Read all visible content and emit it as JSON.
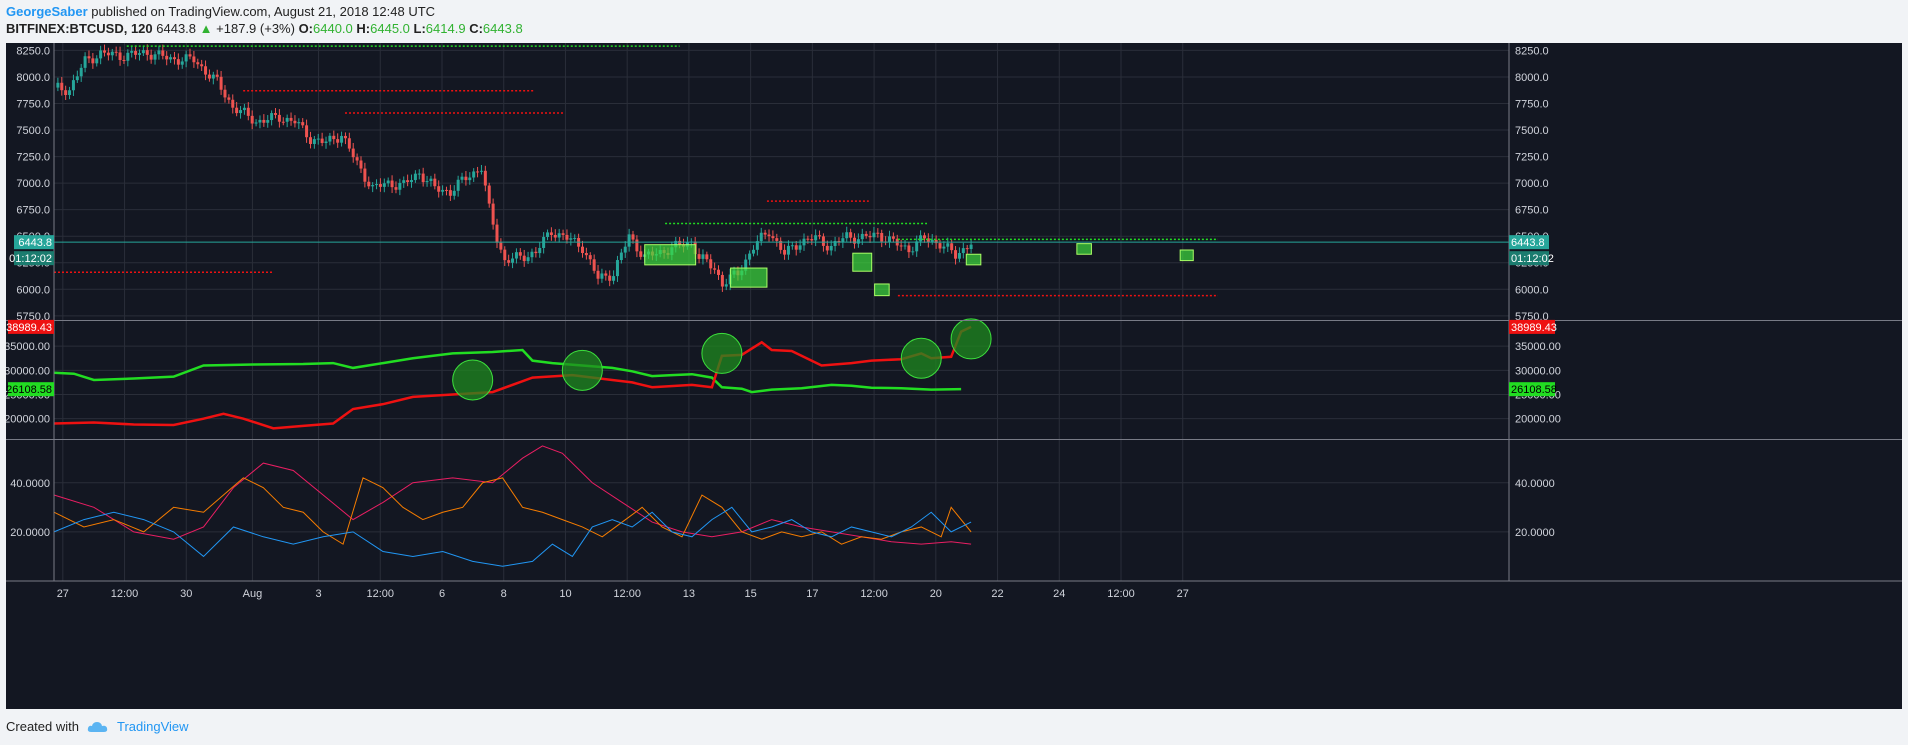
{
  "header": {
    "author": "GeorgeSaber",
    "published_text": "published on TradingView.com, August 21, 2018 12:48 UTC",
    "symbol": "BITFINEX:BTCUSD, 120",
    "last": "6443.8",
    "change": "+187.9 (+3%)",
    "o_label": "O:",
    "o": "6440.0",
    "h_label": "H:",
    "h": "6445.0",
    "l_label": "L:",
    "l": "6414.9",
    "c_label": "C:",
    "c": "6443.8"
  },
  "footer": {
    "created_with": "Created with",
    "brand": "TradingView"
  },
  "colors": {
    "bg": "#131722",
    "grid": "#2a2e39",
    "up": "#26a69a",
    "down": "#ef5350",
    "green": "#22dd22",
    "red": "#ee1111",
    "orange": "#f57c00",
    "pink": "#e91e63",
    "blue": "#2196f3"
  },
  "chart_data": [
    {
      "type": "candlestick",
      "pane": "price",
      "y_ticks": [
        "8250.0",
        "8000.0",
        "7750.0",
        "7500.0",
        "7250.0",
        "7000.0",
        "6750.0",
        "6500.0",
        "6250.0",
        "6000.0",
        "5750.0"
      ],
      "ylim": [
        5720,
        8320
      ],
      "x_ticks": [
        "27",
        "12:00",
        "30",
        "Aug",
        "3",
        "12:00",
        "6",
        "8",
        "10",
        "12:00",
        "13",
        "15",
        "17",
        "12:00",
        "20",
        "22",
        "24",
        "12:00",
        "27"
      ],
      "last_price_label": "6443.8",
      "countdown_label": "01:12:02",
      "close_path": [
        [
          0,
          7900
        ],
        [
          2,
          7880
        ],
        [
          4,
          8150
        ],
        [
          6,
          8220
        ],
        [
          9,
          8200
        ],
        [
          12,
          8230
        ],
        [
          15,
          8170
        ],
        [
          18,
          8160
        ],
        [
          21,
          7950
        ],
        [
          23,
          7720
        ],
        [
          26,
          7580
        ],
        [
          29,
          7620
        ],
        [
          31,
          7580
        ],
        [
          33,
          7420
        ],
        [
          35,
          7380
        ],
        [
          37,
          7460
        ],
        [
          39,
          7180
        ],
        [
          41,
          6950
        ],
        [
          43,
          7000
        ],
        [
          45,
          6980
        ],
        [
          47,
          7100
        ],
        [
          49,
          6950
        ],
        [
          51,
          6920
        ],
        [
          53,
          7050
        ],
        [
          55,
          7150
        ],
        [
          56,
          6750
        ],
        [
          57,
          6480
        ],
        [
          58,
          6270
        ],
        [
          60,
          6300
        ],
        [
          62,
          6350
        ],
        [
          64,
          6550
        ],
        [
          66,
          6480
        ],
        [
          68,
          6400
        ],
        [
          70,
          6100
        ],
        [
          72,
          6150
        ],
        [
          74,
          6500
        ],
        [
          76,
          6300
        ],
        [
          78,
          6350
        ],
        [
          80,
          6400
        ],
        [
          82,
          6450
        ],
        [
          83,
          6300
        ],
        [
          85,
          6200
        ],
        [
          86,
          6050
        ],
        [
          88,
          6150
        ],
        [
          90,
          6400
        ],
        [
          92,
          6550
        ],
        [
          94,
          6330
        ],
        [
          96,
          6450
        ],
        [
          98,
          6480
        ],
        [
          100,
          6400
        ],
        [
          102,
          6500
        ],
        [
          104,
          6480
        ],
        [
          106,
          6520
        ],
        [
          108,
          6440
        ],
        [
          110,
          6380
        ],
        [
          112,
          6480
        ],
        [
          114,
          6430
        ],
        [
          116,
          6320
        ],
        [
          118,
          6440
        ]
      ]
    },
    {
      "type": "line",
      "pane": "volume-balance",
      "y_ticks": [
        "35000.00",
        "30000.00",
        "25000.00",
        "20000.00"
      ],
      "ylim": [
        16000,
        40000
      ],
      "series": [
        {
          "color": "#22dd22",
          "last_label": "26108.58",
          "values": [
            [
              0,
              29500
            ],
            [
              2,
              29300
            ],
            [
              4,
              28000
            ],
            [
              8,
              28300
            ],
            [
              12,
              28700
            ],
            [
              15,
              31000
            ],
            [
              20,
              31200
            ],
            [
              25,
              31300
            ],
            [
              28,
              31500
            ],
            [
              30,
              30500
            ],
            [
              33,
              31500
            ],
            [
              36,
              32500
            ],
            [
              40,
              33500
            ],
            [
              44,
              33800
            ],
            [
              47,
              34200
            ],
            [
              48,
              32000
            ],
            [
              50,
              31500
            ],
            [
              53,
              31000
            ],
            [
              56,
              30500
            ],
            [
              58,
              29800
            ],
            [
              60,
              28800
            ],
            [
              62,
              29000
            ],
            [
              64,
              29200
            ],
            [
              66,
              28500
            ],
            [
              67,
              26500
            ],
            [
              69,
              26200
            ],
            [
              70,
              25500
            ],
            [
              72,
              26000
            ],
            [
              75,
              26300
            ],
            [
              78,
              27000
            ],
            [
              80,
              26800
            ],
            [
              82,
              26400
            ],
            [
              85,
              26300
            ],
            [
              88,
              26000
            ],
            [
              91,
              26100
            ]
          ]
        },
        {
          "color": "#ee1111",
          "last_label": "38989.43",
          "values": [
            [
              0,
              19000
            ],
            [
              4,
              19200
            ],
            [
              8,
              18800
            ],
            [
              12,
              18700
            ],
            [
              15,
              20000
            ],
            [
              17,
              21000
            ],
            [
              19,
              20000
            ],
            [
              22,
              18000
            ],
            [
              25,
              18500
            ],
            [
              28,
              19000
            ],
            [
              30,
              22000
            ],
            [
              33,
              23000
            ],
            [
              36,
              24500
            ],
            [
              40,
              25000
            ],
            [
              44,
              25500
            ],
            [
              48,
              28500
            ],
            [
              52,
              29000
            ],
            [
              56,
              28000
            ],
            [
              58,
              27500
            ],
            [
              60,
              26500
            ],
            [
              64,
              27000
            ],
            [
              66,
              26500
            ],
            [
              67,
              33000
            ],
            [
              69,
              33200
            ],
            [
              71,
              35800
            ],
            [
              72,
              34200
            ],
            [
              74,
              34000
            ],
            [
              77,
              31000
            ],
            [
              80,
              31500
            ],
            [
              82,
              32000
            ],
            [
              85,
              32300
            ],
            [
              87,
              33500
            ],
            [
              88,
              32500
            ],
            [
              90,
              32800
            ],
            [
              91,
              38000
            ],
            [
              92,
              38989
            ]
          ]
        }
      ],
      "markers_x": [
        42,
        53,
        67,
        87,
        92
      ]
    },
    {
      "type": "line",
      "pane": "oscillator",
      "y_ticks": [
        "40.0000",
        "20.0000"
      ],
      "ylim": [
        0,
        57
      ],
      "series": [
        {
          "color": "#e91e63",
          "values": [
            [
              0,
              35
            ],
            [
              4,
              30
            ],
            [
              8,
              20
            ],
            [
              12,
              17
            ],
            [
              15,
              22
            ],
            [
              18,
              38
            ],
            [
              21,
              48
            ],
            [
              24,
              45
            ],
            [
              27,
              35
            ],
            [
              30,
              25
            ],
            [
              33,
              32
            ],
            [
              36,
              40
            ],
            [
              40,
              42
            ],
            [
              44,
              40
            ],
            [
              47,
              50
            ],
            [
              49,
              55
            ],
            [
              51,
              52
            ],
            [
              54,
              40
            ],
            [
              57,
              32
            ],
            [
              60,
              24
            ],
            [
              63,
              20
            ],
            [
              66,
              18
            ],
            [
              69,
              20
            ],
            [
              72,
              25
            ],
            [
              75,
              22
            ],
            [
              78,
              20
            ],
            [
              81,
              18
            ],
            [
              84,
              16
            ],
            [
              87,
              15
            ],
            [
              90,
              16
            ],
            [
              92,
              15
            ]
          ]
        },
        {
          "color": "#f57c00",
          "values": [
            [
              0,
              28
            ],
            [
              3,
              22
            ],
            [
              6,
              25
            ],
            [
              9,
              20
            ],
            [
              12,
              30
            ],
            [
              15,
              28
            ],
            [
              17,
              35
            ],
            [
              19,
              42
            ],
            [
              21,
              38
            ],
            [
              23,
              30
            ],
            [
              25,
              28
            ],
            [
              27,
              20
            ],
            [
              29,
              15
            ],
            [
              31,
              42
            ],
            [
              33,
              38
            ],
            [
              35,
              30
            ],
            [
              37,
              25
            ],
            [
              39,
              28
            ],
            [
              41,
              30
            ],
            [
              43,
              40
            ],
            [
              45,
              42
            ],
            [
              47,
              30
            ],
            [
              49,
              28
            ],
            [
              51,
              25
            ],
            [
              53,
              22
            ],
            [
              55,
              18
            ],
            [
              57,
              24
            ],
            [
              59,
              30
            ],
            [
              61,
              22
            ],
            [
              63,
              18
            ],
            [
              65,
              35
            ],
            [
              67,
              30
            ],
            [
              69,
              20
            ],
            [
              71,
              17
            ],
            [
              73,
              20
            ],
            [
              75,
              18
            ],
            [
              77,
              20
            ],
            [
              79,
              15
            ],
            [
              81,
              18
            ],
            [
              83,
              17
            ],
            [
              85,
              20
            ],
            [
              87,
              22
            ],
            [
              89,
              18
            ],
            [
              90,
              30
            ],
            [
              92,
              20
            ]
          ]
        },
        {
          "color": "#2196f3",
          "values": [
            [
              0,
              20
            ],
            [
              3,
              25
            ],
            [
              6,
              28
            ],
            [
              9,
              25
            ],
            [
              12,
              20
            ],
            [
              15,
              10
            ],
            [
              18,
              22
            ],
            [
              21,
              18
            ],
            [
              24,
              15
            ],
            [
              27,
              18
            ],
            [
              30,
              20
            ],
            [
              33,
              12
            ],
            [
              36,
              10
            ],
            [
              39,
              12
            ],
            [
              42,
              8
            ],
            [
              45,
              6
            ],
            [
              48,
              8
            ],
            [
              50,
              15
            ],
            [
              52,
              10
            ],
            [
              54,
              22
            ],
            [
              56,
              25
            ],
            [
              58,
              22
            ],
            [
              60,
              28
            ],
            [
              62,
              20
            ],
            [
              64,
              18
            ],
            [
              66,
              25
            ],
            [
              68,
              30
            ],
            [
              70,
              20
            ],
            [
              72,
              22
            ],
            [
              74,
              25
            ],
            [
              76,
              20
            ],
            [
              78,
              18
            ],
            [
              80,
              22
            ],
            [
              82,
              20
            ],
            [
              84,
              18
            ],
            [
              86,
              22
            ],
            [
              88,
              28
            ],
            [
              90,
              20
            ],
            [
              92,
              24
            ]
          ]
        }
      ]
    }
  ]
}
